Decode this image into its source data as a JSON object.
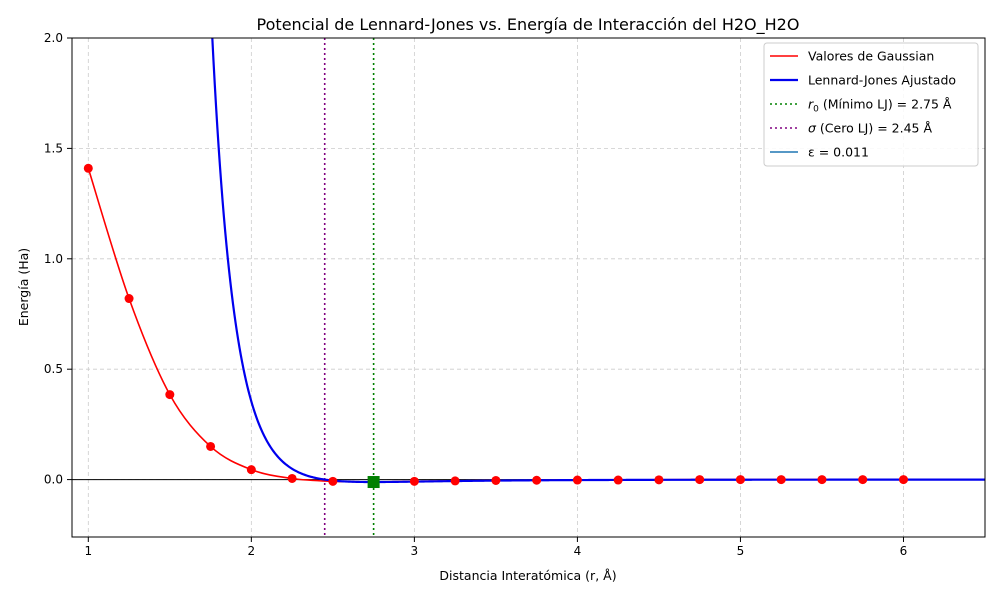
{
  "chart_data": {
    "type": "line",
    "title": "Potencial de Lennard-Jones vs. Energía de Interacción del H2O_H2O",
    "xlabel": "Distancia Interatómica (r, Å)",
    "ylabel": "Energía (Ha)",
    "xlim": [
      0.9,
      6.5
    ],
    "ylim": [
      -0.26,
      2.0
    ],
    "x_ticks": [
      1,
      2,
      3,
      4,
      5,
      6
    ],
    "y_ticks": [
      0.0,
      0.5,
      1.0,
      1.5,
      2.0
    ],
    "x_tick_labels": [
      "1",
      "2",
      "3",
      "4",
      "5",
      "6"
    ],
    "y_tick_labels": [
      "0.0",
      "0.5",
      "1.0",
      "1.5",
      "2.0"
    ],
    "grid": true,
    "legend_position": "top-right",
    "colors": {
      "gaussian": "#ff0000",
      "lj": "#0000ee",
      "r0": "#008000",
      "sigma": "#800080",
      "epsilon": "#1f77b4",
      "zero_line": "#000000"
    },
    "series": [
      {
        "name": "Valores de Gaussian",
        "x": [
          1.0,
          1.25,
          1.5,
          1.75,
          2.0,
          2.25,
          2.5,
          2.75,
          3.0,
          3.25,
          3.5,
          3.75,
          4.0,
          4.25,
          4.5,
          4.75,
          5.0,
          5.25,
          5.5,
          5.75,
          6.0
        ],
        "y": [
          1.41,
          0.82,
          0.385,
          0.15,
          0.045,
          0.005,
          -0.008,
          -0.01,
          -0.008,
          -0.006,
          -0.004,
          -0.003,
          -0.002,
          -0.002,
          -0.001,
          0.0,
          0.0,
          0.0,
          0.0,
          0.0,
          0.0
        ]
      },
      {
        "name": "Lennard-Jones Ajustado",
        "epsilon": 0.011,
        "sigma": 2.45,
        "x_range": [
          1.72,
          6.5
        ]
      }
    ],
    "vlines": [
      {
        "name": "r0",
        "x": 2.75,
        "label_value": "2.75 Å"
      },
      {
        "name": "sigma",
        "x": 2.45,
        "label_value": "2.45 Å"
      }
    ],
    "minimum_marker": {
      "x": 2.75,
      "y": -0.011
    },
    "legend": [
      {
        "key": "gaussian",
        "style": "solid",
        "text": "Valores de Gaussian"
      },
      {
        "key": "lj",
        "style": "solid-thick",
        "text": "Lennard-Jones Ajustado"
      },
      {
        "key": "r0",
        "style": "dotted",
        "symbol": "r",
        "sub": "0",
        "text": " (Mínimo LJ) = 2.75 Å"
      },
      {
        "key": "sigma",
        "style": "dotted",
        "symbol": "σ",
        "sub": "",
        "text": " (Cero LJ) = 2.45 Å"
      },
      {
        "key": "epsilon",
        "style": "solid",
        "text": "ε = 0.011"
      }
    ]
  }
}
